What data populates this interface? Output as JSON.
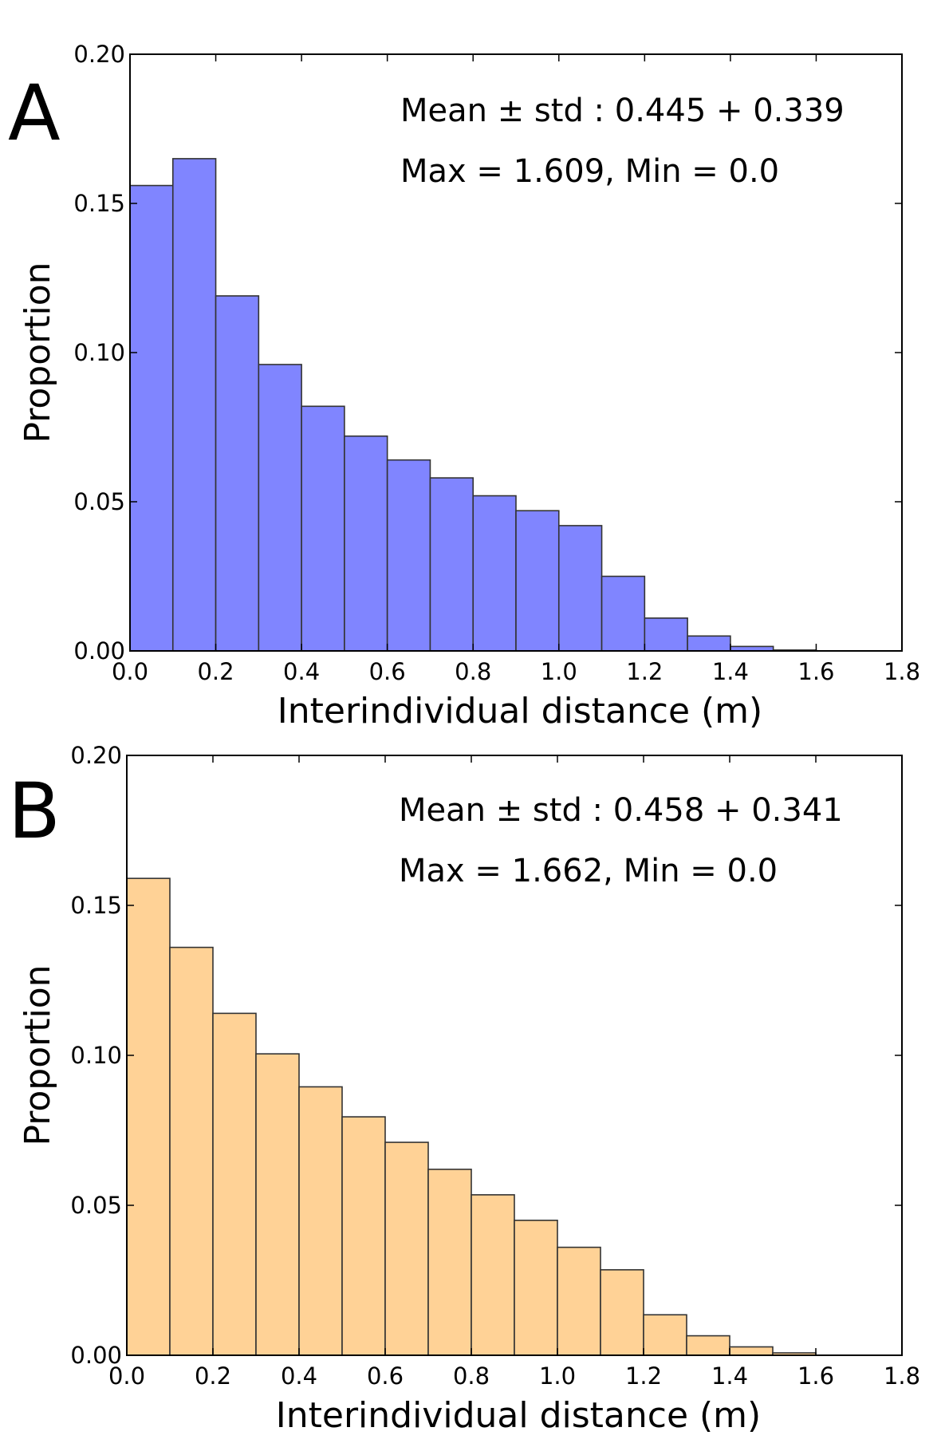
{
  "chart_data": [
    {
      "type": "bar",
      "panel_label": "A",
      "xlabel": "Interindividual distance (m)",
      "ylabel": "Proportion",
      "xlim": [
        0.0,
        1.8
      ],
      "ylim": [
        0.0,
        0.2
      ],
      "x_ticks": [
        "0.0",
        "0.2",
        "0.4",
        "0.6",
        "0.8",
        "1.0",
        "1.2",
        "1.4",
        "1.6",
        "1.8"
      ],
      "y_ticks": [
        "0.00",
        "0.05",
        "0.10",
        "0.15",
        "0.20"
      ],
      "bin_width": 0.1,
      "bin_starts": [
        0.0,
        0.1,
        0.2,
        0.3,
        0.4,
        0.5,
        0.6,
        0.7,
        0.8,
        0.9,
        1.0,
        1.1,
        1.2,
        1.3,
        1.4,
        1.5
      ],
      "values": [
        0.156,
        0.165,
        0.119,
        0.096,
        0.082,
        0.072,
        0.064,
        0.058,
        0.052,
        0.047,
        0.042,
        0.025,
        0.011,
        0.005,
        0.0015,
        0.0003
      ],
      "annotations": [
        "Mean ± std : 0.445 + 0.339",
        "Max = 1.609, Min = 0.0"
      ],
      "color": "#8085ff",
      "grid": false
    },
    {
      "type": "bar",
      "panel_label": "B",
      "xlabel": "Interindividual distance (m)",
      "ylabel": "Proportion",
      "xlim": [
        0.0,
        1.8
      ],
      "ylim": [
        0.0,
        0.2
      ],
      "x_ticks": [
        "0.0",
        "0.2",
        "0.4",
        "0.6",
        "0.8",
        "1.0",
        "1.2",
        "1.4",
        "1.6",
        "1.8"
      ],
      "y_ticks": [
        "0.00",
        "0.05",
        "0.10",
        "0.15",
        "0.20"
      ],
      "bin_width": 0.1,
      "bin_starts": [
        0.0,
        0.1,
        0.2,
        0.3,
        0.4,
        0.5,
        0.6,
        0.7,
        0.8,
        0.9,
        1.0,
        1.1,
        1.2,
        1.3,
        1.4,
        1.5
      ],
      "values": [
        0.159,
        0.136,
        0.114,
        0.1005,
        0.0895,
        0.0795,
        0.071,
        0.062,
        0.0535,
        0.045,
        0.036,
        0.0285,
        0.0135,
        0.0065,
        0.0028,
        0.0008
      ],
      "annotations": [
        "Mean ± std : 0.458 + 0.341",
        "Max = 1.662, Min = 0.0"
      ],
      "color": "#ffd296",
      "grid": false
    }
  ]
}
